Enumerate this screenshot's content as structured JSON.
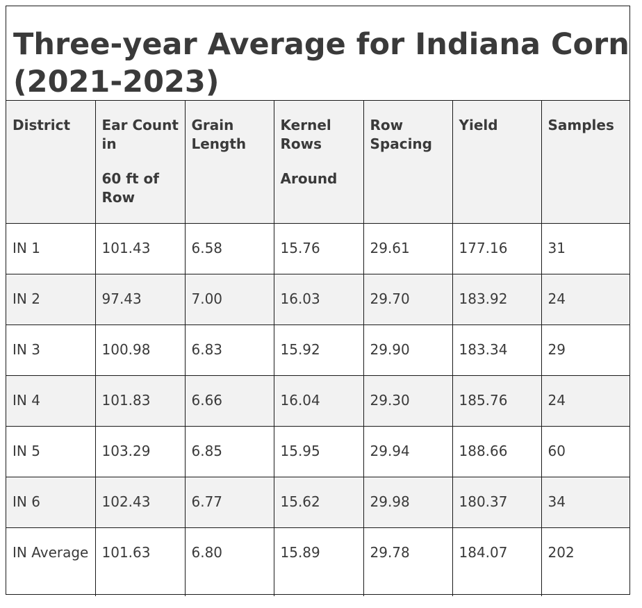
{
  "table": {
    "title": "Three-year Average for Indiana Corn\n(2021-2023)",
    "headers": [
      {
        "line1": "District",
        "line2": ""
      },
      {
        "line1": "Ear Count in",
        "line2": "60 ft of Row"
      },
      {
        "line1": "Grain Length",
        "line2": ""
      },
      {
        "line1": "Kernel Rows",
        "line2": "Around"
      },
      {
        "line1": "Row Spacing",
        "line2": ""
      },
      {
        "line1": "Yield",
        "line2": ""
      },
      {
        "line1": "Samples",
        "line2": ""
      }
    ],
    "rows": [
      [
        "IN 1",
        "101.43",
        "6.58",
        "15.76",
        "29.61",
        "177.16",
        "31"
      ],
      [
        "IN 2",
        "97.43",
        "7.00",
        "16.03",
        "29.70",
        "183.92",
        "24"
      ],
      [
        "IN 3",
        "100.98",
        "6.83",
        "15.92",
        "29.90",
        "183.34",
        "29"
      ],
      [
        "IN 4",
        "101.83",
        "6.66",
        "16.04",
        "29.30",
        "185.76",
        "24"
      ],
      [
        "IN 5",
        "103.29",
        "6.85",
        "15.95",
        "29.94",
        "188.66",
        "60"
      ],
      [
        "IN 6",
        "102.43",
        "6.77",
        "15.62",
        "29.98",
        "180.37",
        "34"
      ],
      [
        "IN Average",
        "101.63",
        "6.80",
        "15.89",
        "29.78",
        "184.07",
        "202"
      ]
    ]
  }
}
